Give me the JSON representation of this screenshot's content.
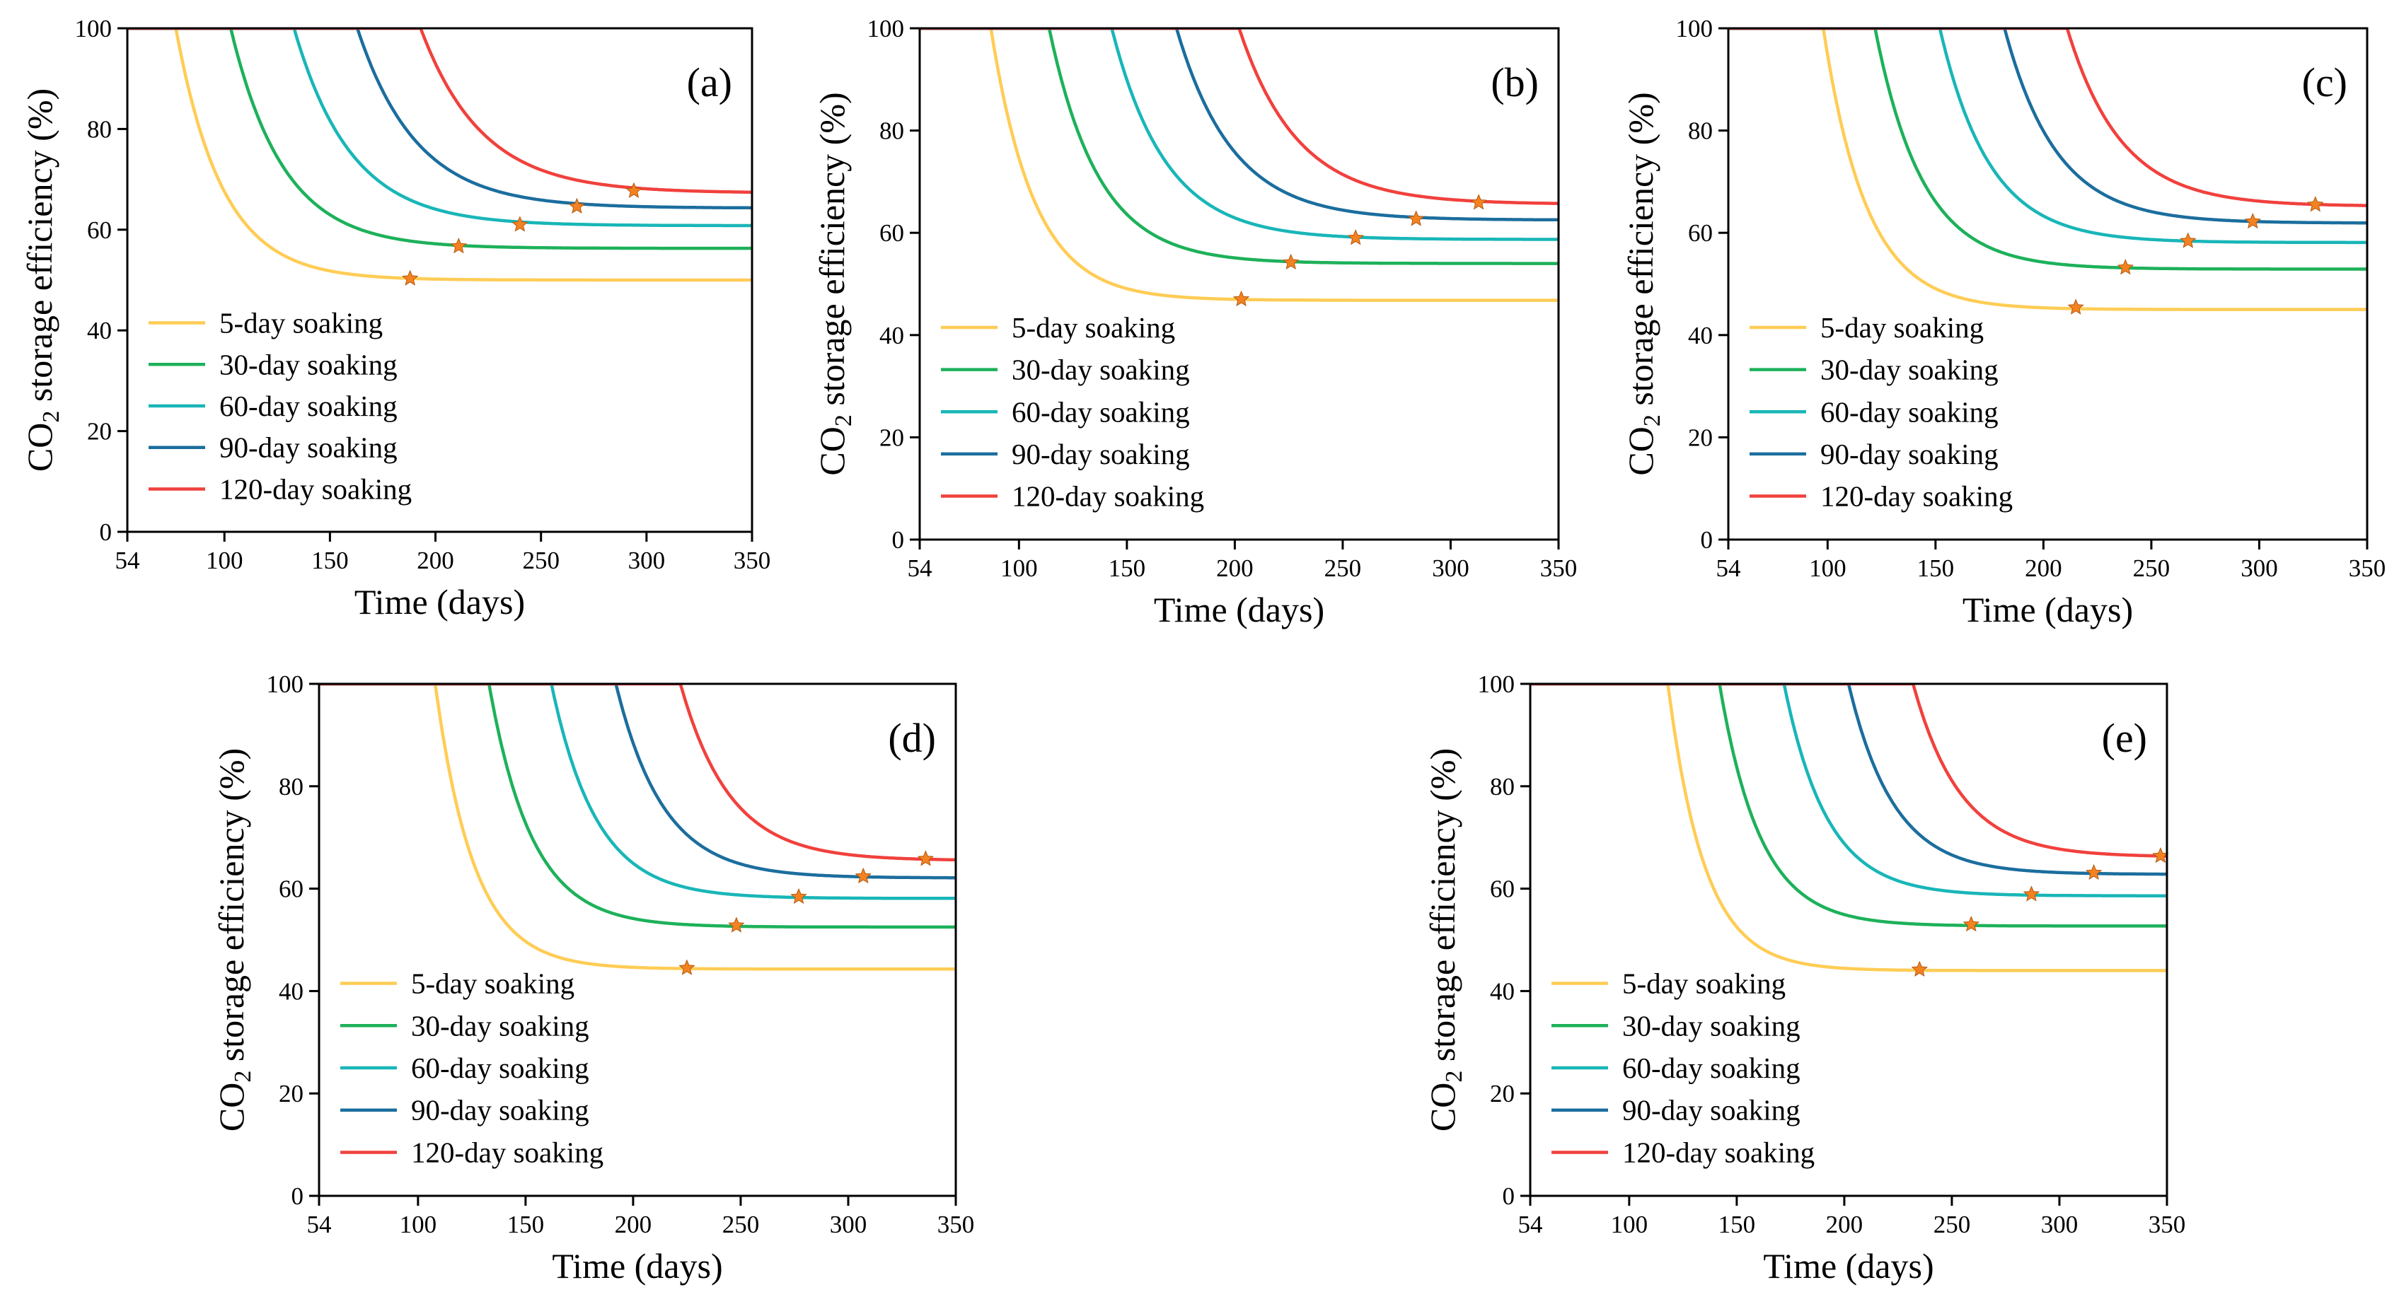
{
  "figure": {
    "colors": {
      "5-day": "#FFCC55",
      "30-day": "#1DB15A",
      "60-day": "#19B6B8",
      "90-day": "#1B6E9E",
      "120-day": "#F1413D",
      "marker": "#F58220",
      "axis": "#000000"
    }
  },
  "chart_data": [
    {
      "panel": "(a)",
      "type": "line",
      "xlabel": "Time (days)",
      "ylabel_main": "CO",
      "ylabel_sub": "2",
      "ylabel_rest": " storage efficiency (%)",
      "xlim": [
        54,
        350
      ],
      "ylim": [
        0,
        100
      ],
      "xticks": [
        54,
        100,
        150,
        200,
        250,
        300,
        350
      ],
      "yticks": [
        0,
        20,
        40,
        60,
        80,
        100
      ],
      "series": [
        {
          "name": "5-day soaking",
          "key": "5-day",
          "drop_start": 77,
          "plateau": 50,
          "k": 22,
          "star": [
            188,
            50.3
          ]
        },
        {
          "name": "30-day soaking",
          "key": "30-day",
          "drop_start": 103,
          "plateau": 56.3,
          "k": 25,
          "star": [
            211,
            56.7
          ]
        },
        {
          "name": "60-day soaking",
          "key": "60-day",
          "drop_start": 133,
          "plateau": 60.8,
          "k": 27,
          "star": [
            240,
            61
          ]
        },
        {
          "name": "90-day soaking",
          "key": "90-day",
          "drop_start": 163,
          "plateau": 64.3,
          "k": 28,
          "star": [
            267,
            64.6
          ]
        },
        {
          "name": "120-day soaking",
          "key": "120-day",
          "drop_start": 193,
          "plateau": 67.3,
          "k": 29,
          "star": [
            294,
            67.7
          ]
        }
      ]
    },
    {
      "panel": "(b)",
      "type": "line",
      "xlabel": "Time (days)",
      "ylabel_main": "CO",
      "ylabel_sub": "2",
      "ylabel_rest": " storage efficiency (%)",
      "xlim": [
        54,
        350
      ],
      "ylim": [
        0,
        100
      ],
      "xticks": [
        54,
        100,
        150,
        200,
        250,
        300,
        350
      ],
      "yticks": [
        0,
        20,
        40,
        60,
        80,
        100
      ],
      "series": [
        {
          "name": "5-day soaking",
          "key": "5-day",
          "drop_start": 87,
          "plateau": 46.8,
          "k": 20,
          "star": [
            203,
            47
          ]
        },
        {
          "name": "30-day soaking",
          "key": "30-day",
          "drop_start": 114,
          "plateau": 54,
          "k": 23,
          "star": [
            226,
            54.2
          ]
        },
        {
          "name": "60-day soaking",
          "key": "60-day",
          "drop_start": 143,
          "plateau": 58.7,
          "k": 25,
          "star": [
            256,
            59
          ]
        },
        {
          "name": "90-day soaking",
          "key": "90-day",
          "drop_start": 173,
          "plateau": 62.5,
          "k": 26,
          "star": [
            284,
            62.7
          ]
        },
        {
          "name": "120-day soaking",
          "key": "120-day",
          "drop_start": 202,
          "plateau": 65.6,
          "k": 27,
          "star": [
            313,
            65.9
          ]
        }
      ]
    },
    {
      "panel": "(c)",
      "type": "line",
      "xlabel": "Time (days)",
      "ylabel_main": "CO",
      "ylabel_sub": "2",
      "ylabel_rest": " storage efficiency (%)",
      "xlim": [
        54,
        350
      ],
      "ylim": [
        0,
        100
      ],
      "xticks": [
        54,
        100,
        150,
        200,
        250,
        300,
        350
      ],
      "yticks": [
        0,
        20,
        40,
        60,
        80,
        100
      ],
      "series": [
        {
          "name": "5-day soaking",
          "key": "5-day",
          "drop_start": 98,
          "plateau": 45,
          "k": 20,
          "star": [
            215,
            45.4
          ]
        },
        {
          "name": "30-day soaking",
          "key": "30-day",
          "drop_start": 122,
          "plateau": 52.9,
          "k": 22,
          "star": [
            238,
            53.2
          ]
        },
        {
          "name": "60-day soaking",
          "key": "60-day",
          "drop_start": 152,
          "plateau": 58.1,
          "k": 23,
          "star": [
            267,
            58.4
          ]
        },
        {
          "name": "90-day soaking",
          "key": "90-day",
          "drop_start": 182,
          "plateau": 61.9,
          "k": 24,
          "star": [
            297,
            62.2
          ]
        },
        {
          "name": "120-day soaking",
          "key": "120-day",
          "drop_start": 211,
          "plateau": 65.2,
          "k": 25,
          "star": [
            326,
            65.5
          ]
        }
      ]
    },
    {
      "panel": "(d)",
      "type": "line",
      "xlabel": "Time (days)",
      "ylabel_main": "CO",
      "ylabel_sub": "2",
      "ylabel_rest": " storage efficiency (%)",
      "xlim": [
        54,
        350
      ],
      "ylim": [
        0,
        100
      ],
      "xticks": [
        54,
        100,
        150,
        200,
        250,
        300,
        350
      ],
      "yticks": [
        0,
        20,
        40,
        60,
        80,
        100
      ],
      "series": [
        {
          "name": "5-day soaking",
          "key": "5-day",
          "drop_start": 108,
          "plateau": 44.3,
          "k": 18,
          "star": [
            225,
            44.5
          ]
        },
        {
          "name": "30-day soaking",
          "key": "30-day",
          "drop_start": 133,
          "plateau": 52.5,
          "k": 20,
          "star": [
            248,
            52.8
          ]
        },
        {
          "name": "60-day soaking",
          "key": "60-day",
          "drop_start": 162,
          "plateau": 58.1,
          "k": 21,
          "star": [
            277,
            58.4
          ]
        },
        {
          "name": "90-day soaking",
          "key": "90-day",
          "drop_start": 192,
          "plateau": 62.1,
          "k": 22,
          "star": [
            307,
            62.4
          ]
        },
        {
          "name": "120-day soaking",
          "key": "120-day",
          "drop_start": 222,
          "plateau": 65.5,
          "k": 23,
          "star": [
            336,
            65.8
          ]
        }
      ]
    },
    {
      "panel": "(e)",
      "type": "line",
      "xlabel": "Time (days)",
      "ylabel_main": "CO",
      "ylabel_sub": "2",
      "ylabel_rest": " storage efficiency (%)",
      "xlim": [
        54,
        350
      ],
      "ylim": [
        0,
        100
      ],
      "xticks": [
        54,
        100,
        150,
        200,
        250,
        300,
        350
      ],
      "yticks": [
        0,
        20,
        40,
        60,
        80,
        100
      ],
      "series": [
        {
          "name": "5-day soaking",
          "key": "5-day",
          "drop_start": 118,
          "plateau": 44,
          "k": 17,
          "star": [
            235,
            44.2
          ]
        },
        {
          "name": "30-day soaking",
          "key": "30-day",
          "drop_start": 142,
          "plateau": 52.7,
          "k": 19,
          "star": [
            259,
            53
          ]
        },
        {
          "name": "60-day soaking",
          "key": "60-day",
          "drop_start": 172,
          "plateau": 58.6,
          "k": 20,
          "star": [
            287,
            58.9
          ]
        },
        {
          "name": "90-day soaking",
          "key": "90-day",
          "drop_start": 202,
          "plateau": 62.8,
          "k": 21,
          "star": [
            316,
            63.1
          ]
        },
        {
          "name": "120-day soaking",
          "key": "120-day",
          "drop_start": 232,
          "plateau": 66.2,
          "k": 22,
          "star": [
            347,
            66.4
          ]
        }
      ]
    }
  ]
}
